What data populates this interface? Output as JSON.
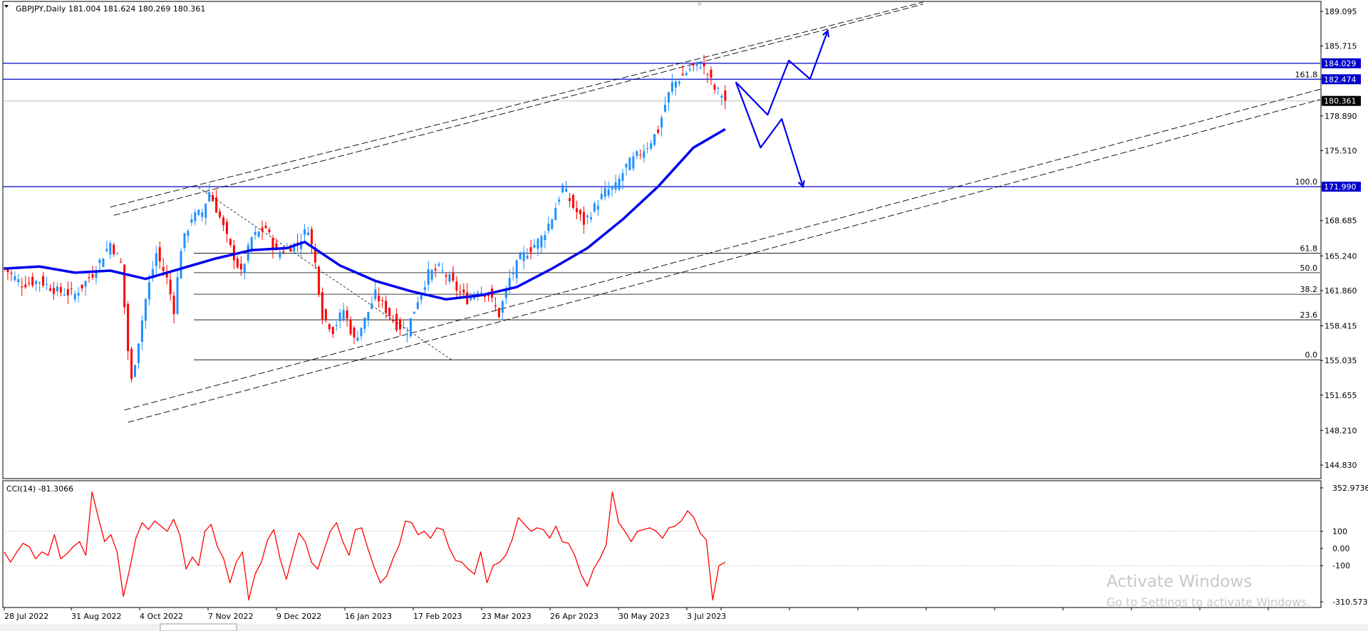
{
  "window": {
    "symbol_info": "GBPJPY,Daily  181.004 181.624 180.269 180.361",
    "watermark_line1": "Activate Windows",
    "watermark_line2": "Go to Settings to activate Windows."
  },
  "colors": {
    "bull": "#1e90ff",
    "bear": "#ff0000",
    "ma": "#0000ee",
    "level_line": "#0000cc",
    "fib_line": "#000000",
    "cci": "#ff0000",
    "grid": "#c0c0c0",
    "drawing": "#0000ee"
  },
  "chart_data": [
    {
      "type": "candlestick",
      "title": "GBPJPY,Daily",
      "ylim": [
        142.8,
        190.2
      ],
      "y_ticks": [
        "189.095",
        "185.715",
        "182.474",
        "178.890",
        "175.510",
        "171.990",
        "168.685",
        "165.240",
        "161.860",
        "158.415",
        "155.035",
        "151.655",
        "148.210",
        "144.830"
      ],
      "x_labels": [
        "28 Jul 2022",
        "31 Aug 2022",
        "4 Oct 2022",
        "7 Nov 2022",
        "9 Dec 2022",
        "16 Jan 2023",
        "17 Feb 2023",
        "23 Mar 2023",
        "26 Apr 2023",
        "30 May 2023",
        "3 Jul 2023"
      ],
      "ohlc_current": {
        "open": 181.004,
        "high": 181.624,
        "low": 180.269,
        "close": 180.361
      },
      "close_path": [
        [
          0,
          164.0
        ],
        [
          5,
          162.5
        ],
        [
          10,
          162.8
        ],
        [
          15,
          161.8
        ],
        [
          20,
          161.5
        ],
        [
          25,
          163.5
        ],
        [
          30,
          166.5
        ],
        [
          33,
          164.5
        ],
        [
          35,
          156.0
        ],
        [
          36,
          153.0
        ],
        [
          38,
          157.0
        ],
        [
          40,
          161.0
        ],
        [
          43,
          165.5
        ],
        [
          46,
          163.0
        ],
        [
          48,
          160.0
        ],
        [
          50,
          166.0
        ],
        [
          53,
          169.0
        ],
        [
          56,
          169.5
        ],
        [
          58,
          171.5
        ],
        [
          61,
          169.0
        ],
        [
          64,
          166.0
        ],
        [
          67,
          163.5
        ],
        [
          70,
          167.0
        ],
        [
          74,
          168.0
        ],
        [
          77,
          165.5
        ],
        [
          80,
          166.0
        ],
        [
          83,
          166.5
        ],
        [
          86,
          168.0
        ],
        [
          88,
          164.5
        ],
        [
          90,
          159.5
        ],
        [
          93,
          158.0
        ],
        [
          96,
          160.0
        ],
        [
          99,
          157.0
        ],
        [
          102,
          159.0
        ],
        [
          105,
          161.5
        ],
        [
          108,
          160.0
        ],
        [
          111,
          158.5
        ],
        [
          114,
          158.0
        ],
        [
          117,
          161.0
        ],
        [
          120,
          163.5
        ],
        [
          123,
          164.0
        ],
        [
          126,
          163.0
        ],
        [
          128,
          162.0
        ],
        [
          131,
          161.0
        ],
        [
          134,
          162.0
        ],
        [
          137,
          161.5
        ],
        [
          140,
          159.5
        ],
        [
          143,
          163.0
        ],
        [
          146,
          165.0
        ],
        [
          149,
          166.0
        ],
        [
          152,
          167.0
        ],
        [
          155,
          169.0
        ],
        [
          158,
          172.0
        ],
        [
          161,
          170.0
        ],
        [
          164,
          168.5
        ],
        [
          167,
          170.0
        ],
        [
          170,
          171.5
        ],
        [
          173,
          172.0
        ],
        [
          176,
          174.0
        ],
        [
          179,
          175.0
        ],
        [
          182,
          176.0
        ],
        [
          185,
          177.5
        ],
        [
          187,
          180.0
        ],
        [
          189,
          182.0
        ],
        [
          191,
          182.5
        ],
        [
          194,
          183.5
        ],
        [
          197,
          184.0
        ],
        [
          199,
          183.0
        ],
        [
          201,
          181.5
        ],
        [
          203,
          181.0
        ],
        [
          204,
          180.4
        ]
      ],
      "ma_series": {
        "name": "",
        "points": [
          [
            0,
            164.0
          ],
          [
            10,
            164.2
          ],
          [
            20,
            163.6
          ],
          [
            30,
            163.8
          ],
          [
            40,
            163.0
          ],
          [
            50,
            164.0
          ],
          [
            60,
            165.0
          ],
          [
            70,
            165.8
          ],
          [
            80,
            166.0
          ],
          [
            85,
            166.6
          ],
          [
            95,
            164.3
          ],
          [
            105,
            162.8
          ],
          [
            115,
            161.8
          ],
          [
            125,
            161.0
          ],
          [
            135,
            161.4
          ],
          [
            145,
            162.2
          ],
          [
            155,
            164.0
          ],
          [
            165,
            166.0
          ],
          [
            175,
            168.8
          ],
          [
            185,
            172.0
          ],
          [
            195,
            175.8
          ],
          [
            204,
            177.6
          ]
        ]
      },
      "horizontal_levels": [
        {
          "price": 184.029,
          "label": "184.029"
        },
        {
          "price": 182.474,
          "label": "182.474"
        },
        {
          "price": 171.99,
          "label": "171.990"
        }
      ],
      "current_price_label": "180.361",
      "fibonacci_levels": [
        {
          "label": "161.8",
          "price": 182.474
        },
        {
          "label": "100.0",
          "price": 171.99
        },
        {
          "label": "61.8",
          "price": 165.5
        },
        {
          "label": "50.0",
          "price": 163.6
        },
        {
          "label": "38.2",
          "price": 161.5
        },
        {
          "label": "23.6",
          "price": 159.0
        },
        {
          "label": "0.0",
          "price": 155.1
        }
      ],
      "channel_lines": [
        {
          "from": [
            30,
            170.0
          ],
          "to": [
            260,
            190.0
          ]
        },
        {
          "from": [
            31,
            169.2
          ],
          "to": [
            260,
            189.8
          ]
        },
        {
          "from": [
            34,
            150.2
          ],
          "to": [
            375,
            181.5
          ]
        },
        {
          "from": [
            35,
            149.0
          ],
          "to": [
            375,
            180.5
          ]
        }
      ],
      "fib_source_line": {
        "from": [
          55,
          171.9
        ],
        "to": [
          127,
          155.0
        ]
      },
      "forecast_paths": [
        [
          [
            207,
            182.2
          ],
          [
            216,
            179.0
          ],
          [
            222,
            184.3
          ],
          [
            228,
            182.5
          ],
          [
            233,
            187.2
          ]
        ],
        [
          [
            207,
            182.2
          ],
          [
            214,
            175.8
          ],
          [
            220,
            178.6
          ],
          [
            226,
            172.0
          ]
        ]
      ]
    },
    {
      "type": "line",
      "title": "CCI(14) -81.3066",
      "ylim": [
        -360,
        380
      ],
      "y_ticks": [
        "352.9736",
        "100",
        "0.00",
        "-100",
        "-310.5735"
      ],
      "values": [
        -20,
        -80,
        -20,
        30,
        10,
        -60,
        -20,
        -40,
        80,
        -60,
        -30,
        10,
        40,
        -40,
        330,
        180,
        40,
        80,
        -20,
        -280,
        -120,
        60,
        150,
        110,
        160,
        130,
        100,
        170,
        80,
        -120,
        -50,
        -100,
        100,
        140,
        10,
        -60,
        -200,
        -80,
        -20,
        -300,
        -150,
        -80,
        50,
        110,
        -60,
        -180,
        -40,
        90,
        40,
        -80,
        -120,
        -10,
        100,
        150,
        40,
        -40,
        110,
        120,
        0,
        -110,
        -200,
        -160,
        -60,
        20,
        160,
        150,
        80,
        100,
        60,
        120,
        110,
        0,
        -70,
        -80,
        -120,
        -150,
        -20,
        -200,
        -100,
        -80,
        -40,
        50,
        180,
        140,
        100,
        120,
        110,
        60,
        130,
        40,
        30,
        -40,
        -150,
        -220,
        -120,
        -60,
        20,
        330,
        150,
        100,
        40,
        100,
        110,
        120,
        100,
        60,
        120,
        130,
        160,
        220,
        180,
        90,
        50,
        -300,
        -100,
        -80
      ]
    }
  ],
  "icons": {
    "scroll_marker": "triangle-down-icon"
  }
}
